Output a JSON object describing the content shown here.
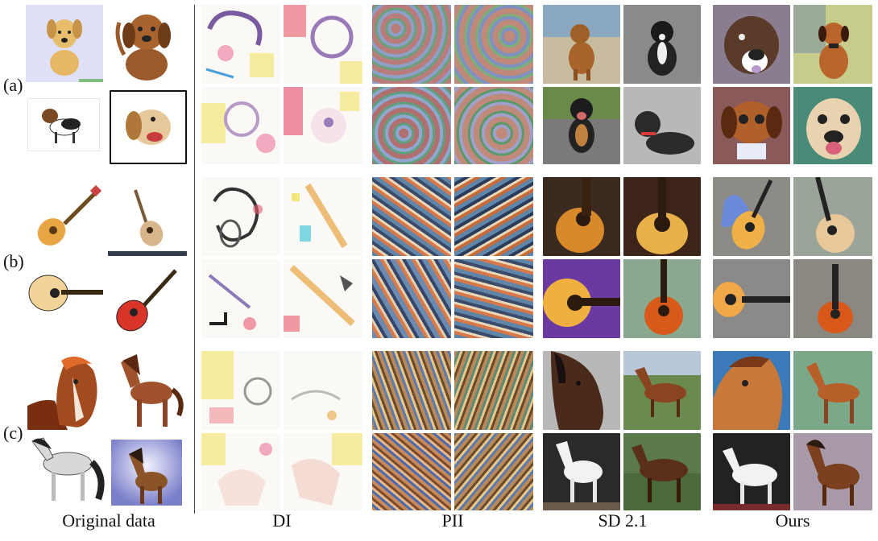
{
  "row_labels": [
    "(a)",
    "(b)",
    "(c)"
  ],
  "column_labels": [
    "Original data",
    "DI",
    "PII",
    "SD 2.1",
    "Ours"
  ],
  "colors": {
    "di_bg": "#fbf9f5",
    "pii_dog": "#b87d7a",
    "pii_guitar": "#5f86a8",
    "pii_horse": "#b8895a",
    "sd_dog_beach": "#c8bca0",
    "sd_guitar_dark": "#3a2a20",
    "sd_horse_field": "#6b8a4f",
    "ours_dog": "#8a7d8f",
    "ours_guitar": "#8d8b86",
    "ours_horse": "#a1724f"
  }
}
